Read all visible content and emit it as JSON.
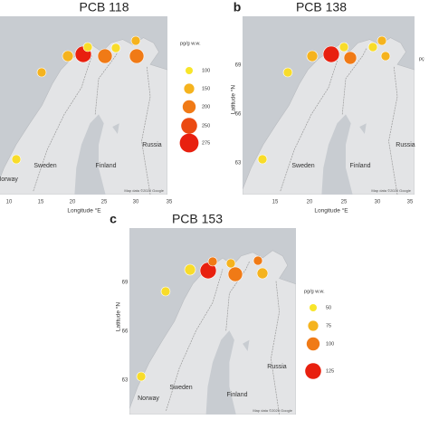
{
  "panels": [
    {
      "title": "PCB 118",
      "x_axis_label": "Longitude °E",
      "x_ticks": [
        "10",
        "15",
        "20",
        "25",
        "30",
        "35"
      ],
      "legend": {
        "title": "pg/g w.w.",
        "levels": [
          "100",
          "150",
          "200",
          "250",
          "275"
        ]
      },
      "places": [
        "Norway",
        "Sweden",
        "Finland",
        "Russia"
      ],
      "attribution": "Map data ©2020 Google"
    },
    {
      "letter": "b",
      "title": "PCB 138",
      "x_axis_label": "Longitude °E",
      "y_axis_label": "Latitude °N",
      "x_ticks": [
        "15",
        "20",
        "25",
        "30",
        "35"
      ],
      "y_ticks": [
        "69",
        "66",
        "63"
      ],
      "legend": {
        "title": "pç"
      },
      "places": [
        "Sweden",
        "Finland",
        "Russia"
      ],
      "attribution": "Map data ©2020 Google"
    },
    {
      "letter": "c",
      "title": "PCB 153",
      "y_axis_label": "Latitude °N",
      "y_ticks": [
        "69",
        "66",
        "63"
      ],
      "legend": {
        "title": "pg/g w.w.",
        "levels": [
          "50",
          "75",
          "100",
          "125"
        ]
      },
      "places": [
        "Norway",
        "Sweden",
        "Finland",
        "Russia"
      ],
      "attribution": "Map data ©2020 Google"
    }
  ]
}
